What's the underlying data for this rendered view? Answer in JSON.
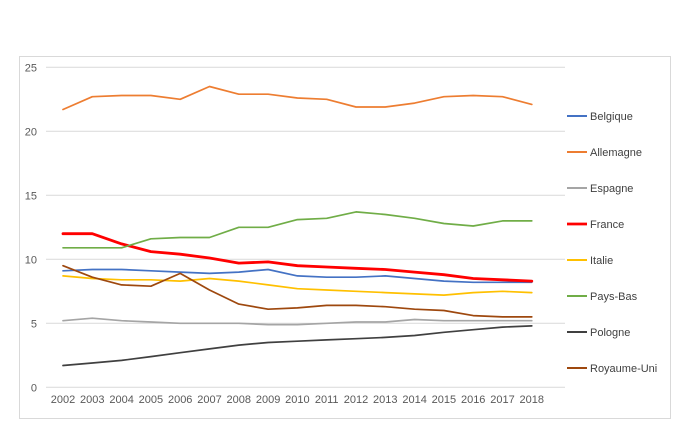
{
  "chart_data": {
    "type": "line",
    "title": "",
    "xlabel": "",
    "ylabel": "",
    "x": [
      2002,
      2003,
      2004,
      2005,
      2006,
      2007,
      2008,
      2009,
      2010,
      2011,
      2012,
      2013,
      2014,
      2015,
      2016,
      2017,
      2018
    ],
    "x_tick_labels": [
      "2002",
      "2003",
      "2004",
      "2005",
      "2006",
      "2007",
      "2008",
      "2009",
      "2010",
      "2011",
      "2012",
      "2013",
      "2014",
      "2015",
      "2016",
      "2017",
      "2018"
    ],
    "ylim": [
      0,
      25
    ],
    "y_tick_labels": [
      "0",
      "5",
      "10",
      "15",
      "20",
      "25"
    ],
    "y_tick_values": [
      0,
      5,
      10,
      15,
      20,
      25
    ],
    "grid": true,
    "legend_position": "right",
    "series": [
      {
        "name": "Belgique",
        "color": "#4472C4",
        "width": 1.7,
        "values": [
          9.1,
          9.2,
          9.2,
          9.1,
          9.0,
          8.9,
          9.0,
          9.2,
          8.7,
          8.6,
          8.6,
          8.7,
          8.5,
          8.3,
          8.2,
          8.2,
          8.2
        ]
      },
      {
        "name": "Allemagne",
        "color": "#ED7D31",
        "width": 1.7,
        "values": [
          21.7,
          22.7,
          22.8,
          22.8,
          22.5,
          23.5,
          22.9,
          22.9,
          22.6,
          22.5,
          21.9,
          21.9,
          22.2,
          22.7,
          22.8,
          22.7,
          22.1
        ]
      },
      {
        "name": "Espagne",
        "color": "#A5A5A5",
        "width": 1.7,
        "values": [
          5.2,
          5.4,
          5.2,
          5.1,
          5.0,
          5.0,
          5.0,
          4.9,
          4.9,
          5.0,
          5.1,
          5.1,
          5.3,
          5.2,
          5.2,
          5.2,
          5.2
        ]
      },
      {
        "name": "France",
        "color": "#FF0000",
        "width": 2.8,
        "values": [
          12.0,
          12.0,
          11.2,
          10.6,
          10.4,
          10.1,
          9.7,
          9.8,
          9.5,
          9.4,
          9.3,
          9.2,
          9.0,
          8.8,
          8.5,
          8.4,
          8.3
        ]
      },
      {
        "name": "Italie",
        "color": "#FFC000",
        "width": 1.7,
        "values": [
          8.7,
          8.5,
          8.4,
          8.4,
          8.3,
          8.5,
          8.3,
          8.0,
          7.7,
          7.6,
          7.5,
          7.4,
          7.3,
          7.2,
          7.4,
          7.5,
          7.4
        ]
      },
      {
        "name": "Pays-Bas",
        "color": "#70AD47",
        "width": 1.7,
        "values": [
          10.9,
          10.9,
          10.9,
          11.6,
          11.7,
          11.7,
          12.5,
          12.5,
          13.1,
          13.2,
          13.7,
          13.5,
          13.2,
          12.8,
          12.6,
          13.0,
          13.0
        ]
      },
      {
        "name": "Pologne",
        "color": "#404040",
        "width": 1.7,
        "values": [
          1.7,
          1.9,
          2.1,
          2.4,
          2.7,
          3.0,
          3.3,
          3.5,
          3.6,
          3.7,
          3.8,
          3.9,
          4.05,
          4.3,
          4.5,
          4.7,
          4.8
        ]
      },
      {
        "name": "Royaume-Uni",
        "color": "#9E480E",
        "width": 1.7,
        "values": [
          9.5,
          8.6,
          8.0,
          7.9,
          8.9,
          7.6,
          6.5,
          6.1,
          6.2,
          6.4,
          6.4,
          6.3,
          6.1,
          6.0,
          5.6,
          5.5,
          5.5
        ]
      }
    ],
    "colors": {
      "gridline": "#d9d9d9",
      "frame_border": "#d9d9d9",
      "tick_text": "#595959",
      "legend_text": "#404040",
      "background": "#ffffff"
    }
  }
}
